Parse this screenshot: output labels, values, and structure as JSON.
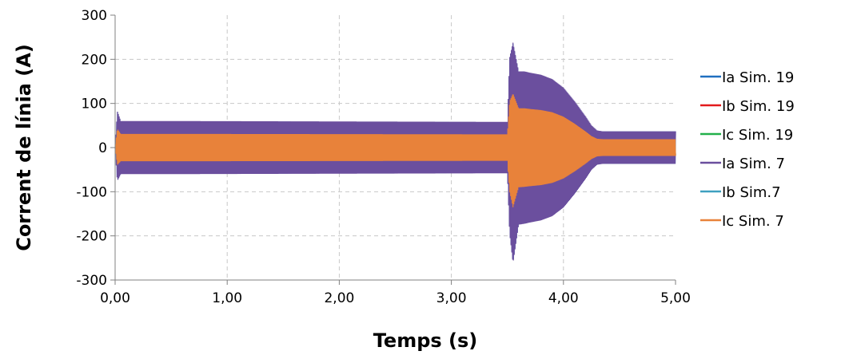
{
  "chart_data": {
    "type": "line",
    "xlabel": "Temps (s)",
    "ylabel": "Corrent de línia (A)",
    "xlim": [
      0,
      5
    ],
    "ylim": [
      -300,
      300
    ],
    "x_ticks": [
      0,
      1,
      2,
      3,
      4,
      5
    ],
    "x_tick_labels": [
      "0,00",
      "1,00",
      "2,00",
      "3,00",
      "4,00",
      "5,00"
    ],
    "y_ticks": [
      300,
      200,
      100,
      0,
      -100,
      -200,
      -300
    ],
    "y_tick_labels": [
      "300",
      "200",
      "100",
      "0",
      "-100",
      "-200",
      "-300"
    ],
    "grid": true,
    "legend_position": "right",
    "series": [
      {
        "name": "Ia Sim. 19",
        "color": "#1f6fc0"
      },
      {
        "name": "Ib Sim. 19",
        "color": "#e31a1c"
      },
      {
        "name": "Ic Sim. 19",
        "color": "#22b04a"
      },
      {
        "name": "Ia Sim. 7",
        "color": "#6b4f9e"
      },
      {
        "name": "Ib Sim.7",
        "color": "#3ea0c0"
      },
      {
        "name": "Ic Sim. 7",
        "color": "#e8823a"
      }
    ],
    "envelope": {
      "x": [
        0.0,
        0.02,
        0.05,
        0.5,
        3.5,
        3.52,
        3.55,
        3.6,
        3.65,
        3.7,
        3.8,
        3.9,
        4.0,
        4.1,
        4.2,
        4.25,
        4.3,
        4.35,
        5.0
      ],
      "upper": [
        0,
        85,
        62,
        62,
        60,
        210,
        245,
        178,
        178,
        175,
        170,
        160,
        140,
        108,
        72,
        52,
        40,
        38,
        38
      ],
      "lower": [
        0,
        -78,
        -62,
        -62,
        -60,
        -200,
        -270,
        -180,
        -178,
        -175,
        -170,
        -160,
        -140,
        -108,
        -72,
        -52,
        -40,
        -38,
        -38
      ]
    }
  }
}
